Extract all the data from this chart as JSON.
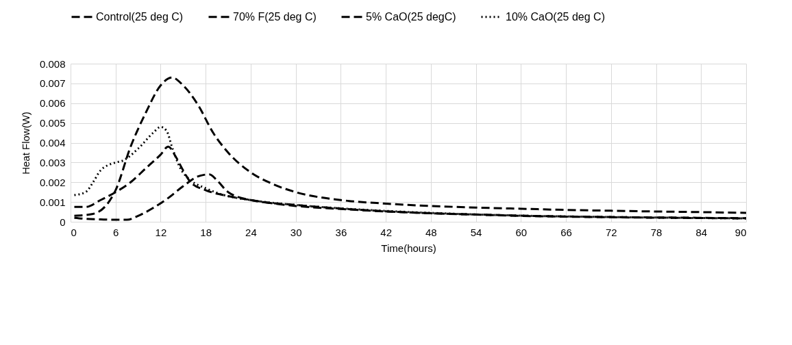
{
  "chart_data": {
    "type": "line",
    "xlabel": "Time(hours)",
    "ylabel": "Heat Flow(W)",
    "xlim": [
      0,
      90
    ],
    "xticks": [
      0,
      6,
      12,
      18,
      24,
      30,
      36,
      42,
      48,
      54,
      60,
      66,
      72,
      78,
      84,
      90
    ],
    "ylim": [
      0,
      0.008
    ],
    "yticks": [
      0,
      0.001,
      0.002,
      0.003,
      0.004,
      0.005,
      0.006,
      0.007,
      0.008
    ],
    "grid": true,
    "legend": "top",
    "series": [
      {
        "name": "Control(25 deg C)",
        "color": "#000000",
        "line_style": "dashed",
        "x": [
          0.5,
          3,
          6,
          8,
          10,
          12,
          13.5,
          15,
          17,
          19,
          21,
          24,
          27,
          30,
          36,
          42,
          48,
          54,
          60,
          66,
          72,
          78,
          84,
          90
        ],
        "values": [
          0.0003,
          0.0004,
          0.0016,
          0.0038,
          0.0055,
          0.0069,
          0.0073,
          0.0069,
          0.0059,
          0.0045,
          0.0035,
          0.0025,
          0.0019,
          0.0015,
          0.0011,
          0.00092,
          0.0008,
          0.00072,
          0.00066,
          0.0006,
          0.00056,
          0.00052,
          0.00049,
          0.00045
        ]
      },
      {
        "name": "70% F(25 deg C)",
        "color": "#000000",
        "line_style": "dashed",
        "x": [
          0.5,
          2,
          4,
          6,
          7.5,
          9,
          11,
          13,
          15,
          17,
          18.5,
          19.5,
          21,
          24,
          30,
          36,
          42,
          48,
          54,
          60,
          72,
          84,
          90
        ],
        "values": [
          0.0002,
          0.00015,
          0.00012,
          0.0001,
          0.0001,
          0.0003,
          0.0007,
          0.0012,
          0.0018,
          0.0023,
          0.0024,
          0.0021,
          0.0015,
          0.0011,
          0.00085,
          0.00067,
          0.00053,
          0.00043,
          0.00037,
          0.00031,
          0.00024,
          0.0002,
          0.00018
        ]
      },
      {
        "name": "5% CaO(25 degC)",
        "color": "#000000",
        "line_style": "dashed",
        "x": [
          0.5,
          2,
          4,
          6,
          8,
          10,
          12,
          13,
          14,
          15,
          16,
          18,
          21,
          24,
          30,
          36,
          42,
          48,
          54,
          60,
          72,
          84,
          90
        ],
        "values": [
          0.00075,
          0.00075,
          0.0011,
          0.0015,
          0.002,
          0.0027,
          0.0034,
          0.0038,
          0.0033,
          0.0026,
          0.002,
          0.0016,
          0.0013,
          0.0011,
          0.0008,
          0.00065,
          0.00052,
          0.00043,
          0.00036,
          0.0003,
          0.00023,
          0.00019,
          0.00017
        ]
      },
      {
        "name": "10% CaO(25 deg C)",
        "color": "#000000",
        "line_style": "dotted",
        "x": [
          0.5,
          2,
          3,
          4,
          6,
          7,
          9,
          11,
          12,
          12.8,
          13.5,
          14.5,
          16,
          18,
          20,
          24,
          30,
          36,
          42,
          48,
          54,
          60,
          72,
          84,
          90
        ],
        "values": [
          0.00135,
          0.0015,
          0.002,
          0.0026,
          0.003,
          0.0031,
          0.0037,
          0.0045,
          0.0048,
          0.0046,
          0.0038,
          0.0028,
          0.0021,
          0.0017,
          0.0014,
          0.0011,
          0.00085,
          0.00068,
          0.00055,
          0.00045,
          0.00037,
          0.00031,
          0.00024,
          0.00019,
          0.00017
        ]
      }
    ]
  }
}
